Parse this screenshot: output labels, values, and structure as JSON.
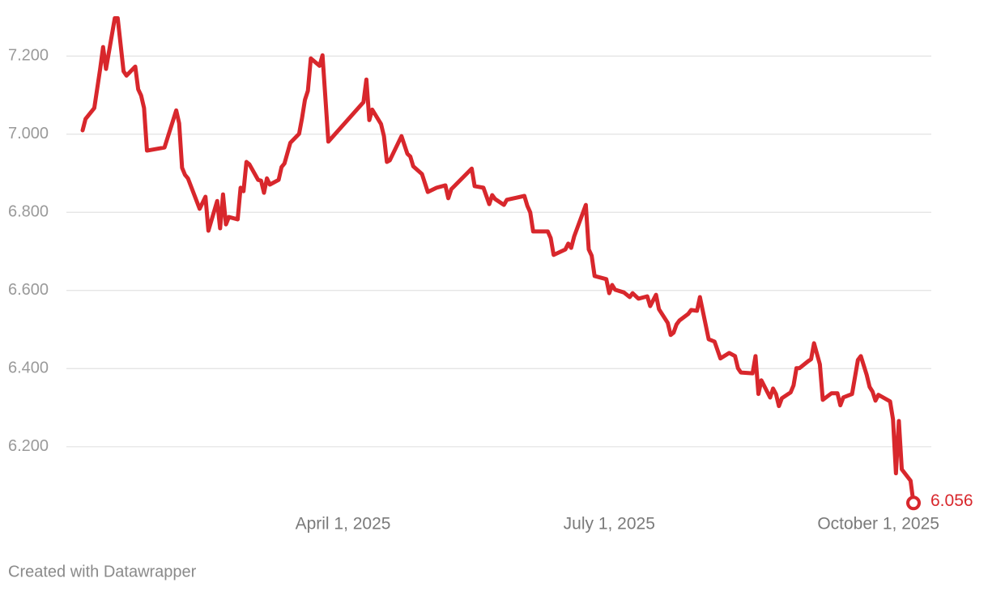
{
  "chart_data": {
    "type": "line",
    "footer": "Created with Datawrapper",
    "color": "#d8272c",
    "grid": true,
    "x": [
      "2025-01-02",
      "2025-01-03",
      "2025-01-06",
      "2025-01-08",
      "2025-01-09",
      "2025-01-10",
      "2025-01-13",
      "2025-01-14",
      "2025-01-16",
      "2025-01-17",
      "2025-01-20",
      "2025-01-21",
      "2025-01-22",
      "2025-01-23",
      "2025-01-24",
      "2025-01-30",
      "2025-02-03",
      "2025-02-04",
      "2025-02-05",
      "2025-02-06",
      "2025-02-07",
      "2025-02-11",
      "2025-02-13",
      "2025-02-14",
      "2025-02-17",
      "2025-02-18",
      "2025-02-19",
      "2025-02-20",
      "2025-02-21",
      "2025-02-24",
      "2025-02-25",
      "2025-02-26",
      "2025-02-27",
      "2025-02-28",
      "2025-03-03",
      "2025-03-04",
      "2025-03-05",
      "2025-03-06",
      "2025-03-07",
      "2025-03-10",
      "2025-03-11",
      "2025-03-12",
      "2025-03-14",
      "2025-03-17",
      "2025-03-18",
      "2025-03-19",
      "2025-03-20",
      "2025-03-21",
      "2025-03-24",
      "2025-03-25",
      "2025-03-27",
      "2025-04-08",
      "2025-04-09",
      "2025-04-10",
      "2025-04-11",
      "2025-04-14",
      "2025-04-15",
      "2025-04-16",
      "2025-04-17",
      "2025-04-21",
      "2025-04-23",
      "2025-04-24",
      "2025-04-25",
      "2025-04-28",
      "2025-04-30",
      "2025-05-03",
      "2025-05-06",
      "2025-05-07",
      "2025-05-08",
      "2025-05-15",
      "2025-05-16",
      "2025-05-19",
      "2025-05-21",
      "2025-05-22",
      "2025-05-23",
      "2025-05-26",
      "2025-05-27",
      "2025-06-02",
      "2025-06-03",
      "2025-06-04",
      "2025-06-05",
      "2025-06-10",
      "2025-06-11",
      "2025-06-12",
      "2025-06-16",
      "2025-06-17",
      "2025-06-18",
      "2025-06-19",
      "2025-06-23",
      "2025-06-24",
      "2025-06-25",
      "2025-06-26",
      "2025-06-30",
      "2025-07-01",
      "2025-07-02",
      "2025-07-03",
      "2025-07-06",
      "2025-07-08",
      "2025-07-09",
      "2025-07-11",
      "2025-07-14",
      "2025-07-15",
      "2025-07-17",
      "2025-07-18",
      "2025-07-21",
      "2025-07-22",
      "2025-07-23",
      "2025-07-24",
      "2025-07-25",
      "2025-07-28",
      "2025-07-29",
      "2025-07-31",
      "2025-08-01",
      "2025-08-04",
      "2025-08-06",
      "2025-08-08",
      "2025-08-11",
      "2025-08-13",
      "2025-08-14",
      "2025-08-15",
      "2025-08-19",
      "2025-08-20",
      "2025-08-21",
      "2025-08-22",
      "2025-08-25",
      "2025-08-26",
      "2025-08-27",
      "2025-08-28",
      "2025-08-29",
      "2025-09-01",
      "2025-09-02",
      "2025-09-03",
      "2025-09-04",
      "2025-09-07",
      "2025-09-08",
      "2025-09-09",
      "2025-09-11",
      "2025-09-12",
      "2025-09-15",
      "2025-09-17",
      "2025-09-18",
      "2025-09-19",
      "2025-09-22",
      "2025-09-24",
      "2025-09-25",
      "2025-09-27",
      "2025-09-28",
      "2025-09-29",
      "2025-09-30",
      "2025-10-01",
      "2025-10-05",
      "2025-10-06",
      "2025-10-07",
      "2025-10-08",
      "2025-10-09",
      "2025-10-12",
      "2025-10-13"
    ],
    "values": [
      7.01,
      7.039,
      7.067,
      7.167,
      7.223,
      7.167,
      7.297,
      7.297,
      7.161,
      7.15,
      7.173,
      7.115,
      7.099,
      7.067,
      6.958,
      6.966,
      7.061,
      7.028,
      6.914,
      6.896,
      6.887,
      6.809,
      6.84,
      6.753,
      6.829,
      6.759,
      6.846,
      6.769,
      6.788,
      6.782,
      6.863,
      6.854,
      6.929,
      6.923,
      6.883,
      6.881,
      6.85,
      6.887,
      6.871,
      6.883,
      6.916,
      6.925,
      6.978,
      7.001,
      7.041,
      7.088,
      7.111,
      7.194,
      7.175,
      7.202,
      6.981,
      7.082,
      7.14,
      7.036,
      7.063,
      7.026,
      6.995,
      6.929,
      6.933,
      6.995,
      6.95,
      6.943,
      6.918,
      6.898,
      6.852,
      6.863,
      6.869,
      6.836,
      6.859,
      6.912,
      6.867,
      6.863,
      6.821,
      6.844,
      6.834,
      6.819,
      6.832,
      6.842,
      6.817,
      6.8,
      6.751,
      6.751,
      6.734,
      6.691,
      6.705,
      6.72,
      6.709,
      6.738,
      6.819,
      6.705,
      6.689,
      6.637,
      6.629,
      6.593,
      6.614,
      6.602,
      6.595,
      6.583,
      6.593,
      6.579,
      6.585,
      6.56,
      6.589,
      6.552,
      6.517,
      6.486,
      6.492,
      6.513,
      6.523,
      6.54,
      6.55,
      6.548,
      6.583,
      6.475,
      6.469,
      6.426,
      6.44,
      6.432,
      6.401,
      6.39,
      6.388,
      6.432,
      6.335,
      6.37,
      6.326,
      6.349,
      6.335,
      6.304,
      6.324,
      6.339,
      6.357,
      6.401,
      6.401,
      6.419,
      6.424,
      6.465,
      6.411,
      6.32,
      6.337,
      6.337,
      6.306,
      6.326,
      6.335,
      6.422,
      6.432,
      6.384,
      6.353,
      6.341,
      6.318,
      6.333,
      6.316,
      6.27,
      6.132,
      6.266,
      6.142,
      6.113,
      6.056
    ],
    "xlim": [
      "2025-01-02",
      "2025-10-13"
    ],
    "xticks": [
      {
        "value": "2025-04-01",
        "label": "April 1, 2025"
      },
      {
        "value": "2025-07-01",
        "label": "July 1, 2025"
      },
      {
        "value": "2025-10-01",
        "label": "October 1, 2025"
      }
    ],
    "ylim": [
      6.04,
      7.3
    ],
    "yticks": [
      {
        "value": 6.2,
        "label": "6.200"
      },
      {
        "value": 6.4,
        "label": "6.400"
      },
      {
        "value": 6.6,
        "label": "6.600"
      },
      {
        "value": 6.8,
        "label": "6.800"
      },
      {
        "value": 7.0,
        "label": "7.000"
      },
      {
        "value": 7.2,
        "label": "7.200"
      }
    ]
  }
}
